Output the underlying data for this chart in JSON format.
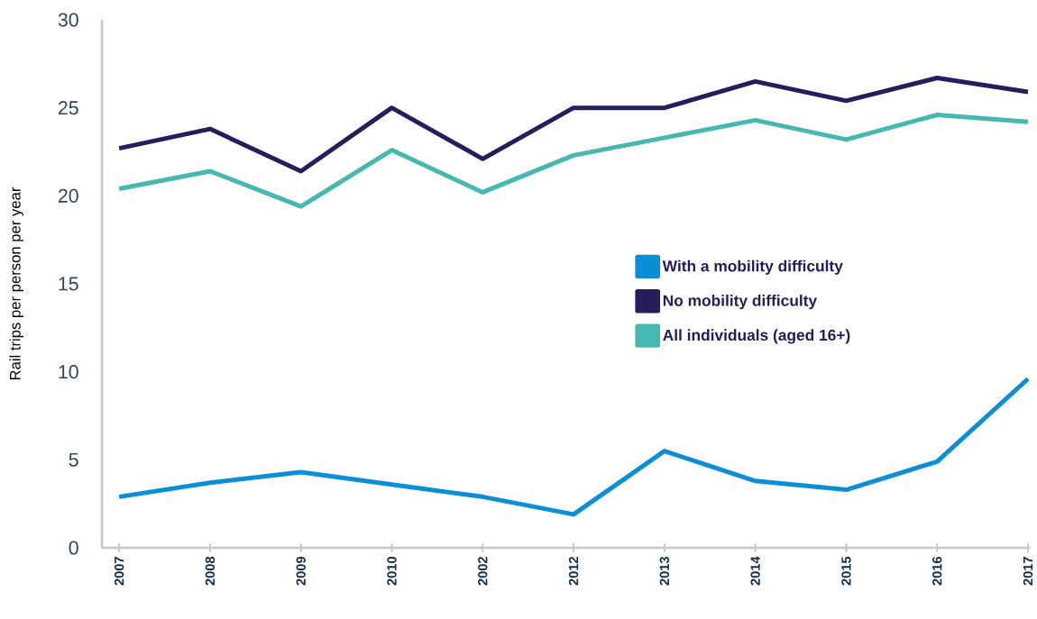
{
  "chart_data": {
    "type": "line",
    "ylabel": "Rail trips per person per year",
    "categories": [
      "2007",
      "2008",
      "2009",
      "2010",
      "2002",
      "2012",
      "2013",
      "2014",
      "2015",
      "2016",
      "2017"
    ],
    "series": [
      {
        "name": "With a mobility difficulty",
        "color": "#0a8fd6",
        "values": [
          2.9,
          3.7,
          4.3,
          3.6,
          2.9,
          1.9,
          5.5,
          3.8,
          3.3,
          4.9,
          9.6
        ]
      },
      {
        "name": "No mobility difficulty",
        "color": "#221f5c",
        "values": [
          22.7,
          23.8,
          21.4,
          25.0,
          22.1,
          25.0,
          25.0,
          26.5,
          25.4,
          26.7,
          25.9
        ]
      },
      {
        "name": "All individuals (aged 16+)",
        "color": "#45b8b0",
        "values": [
          20.4,
          21.4,
          19.4,
          22.6,
          20.2,
          22.3,
          23.3,
          24.3,
          23.2,
          24.6,
          24.2
        ]
      }
    ],
    "ylim": [
      0,
      30
    ],
    "yticks": [
      0,
      5,
      10,
      15,
      20,
      25,
      30
    ],
    "legend": "right"
  }
}
